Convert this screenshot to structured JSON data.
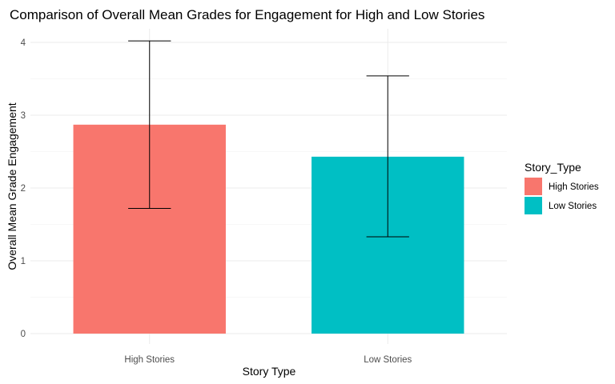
{
  "chart_data": {
    "type": "bar",
    "title": "Comparison of Overall Mean Grades for Engagement for High and Low Stories",
    "xlabel": "Story Type",
    "ylabel": "Overall Mean Grade Engagement",
    "categories": [
      "High Stories",
      "Low Stories"
    ],
    "values": [
      2.87,
      2.43
    ],
    "error_low": [
      1.72,
      1.33
    ],
    "error_high": [
      4.02,
      3.54
    ],
    "ylim": [
      0,
      4.2
    ],
    "yticks": [
      0,
      1,
      2,
      3,
      4
    ],
    "colors": [
      "#F8766D",
      "#00BFC4"
    ],
    "grid": true,
    "legend": {
      "title": "Story_Type",
      "placement": "right",
      "entries": [
        "High Stories",
        "Low Stories"
      ]
    }
  }
}
